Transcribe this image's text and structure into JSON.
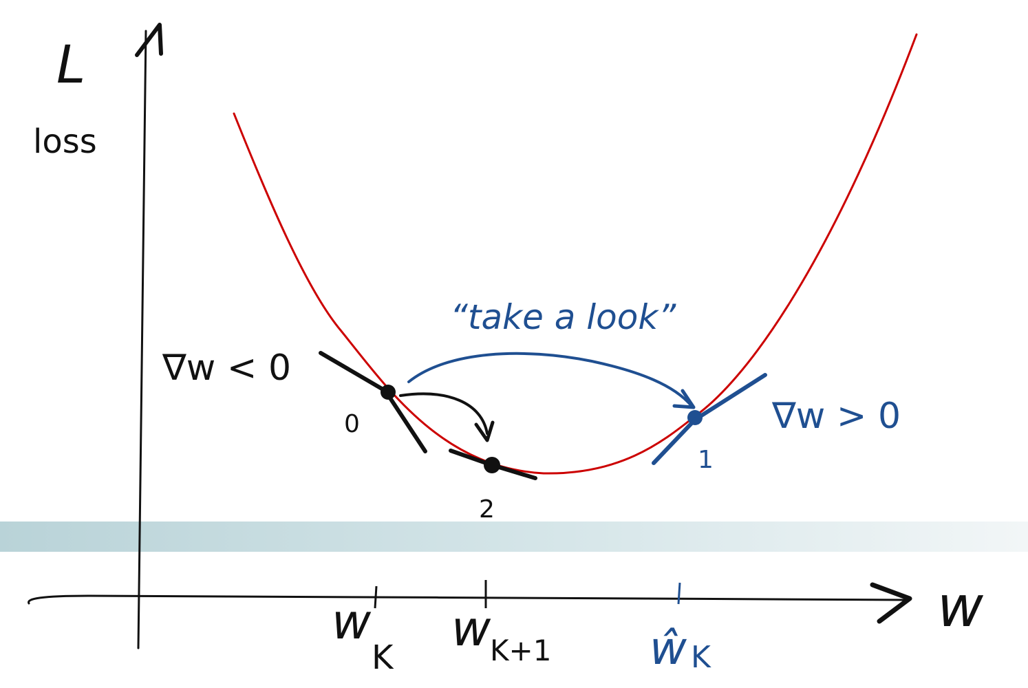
{
  "axes": {
    "y_symbol": "L",
    "y_label": "loss",
    "x_symbol": "w"
  },
  "ticks": {
    "wk": "w",
    "wk_sub": "K",
    "wk1": "w",
    "wk1_sub": "K+1",
    "what": "ŵ",
    "what_sub": "K"
  },
  "annotations": {
    "neg_grad": "∇w < 0",
    "pos_grad": "∇w > 0",
    "lookahead": "“take a look”",
    "step0": "0",
    "step1": "1",
    "step2": "2"
  },
  "colors": {
    "curve": "#cc0000",
    "ink": "#111111",
    "blue": "#1f4f91",
    "band": "#b9d3d8"
  }
}
